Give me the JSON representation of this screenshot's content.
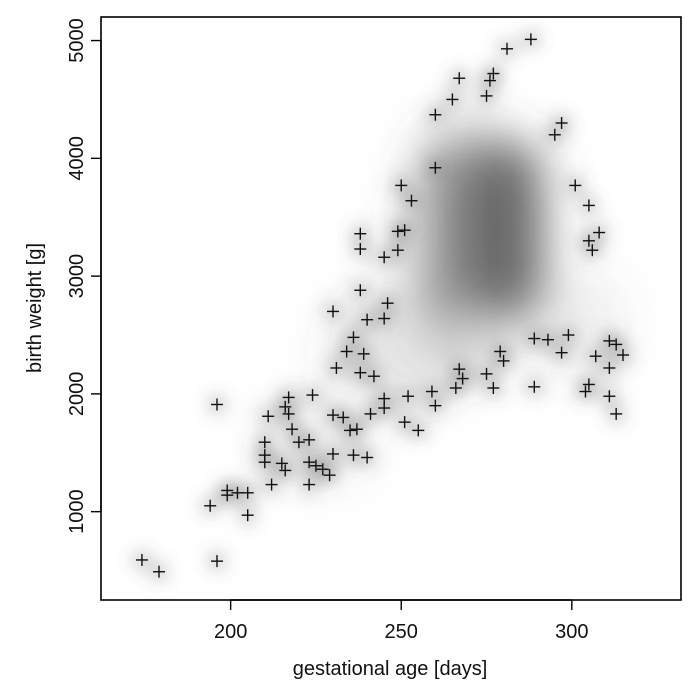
{
  "chart_data": {
    "type": "scatter",
    "xlabel": "gestational age [days]",
    "ylabel": "birth weight [g]",
    "xlim": [
      162,
      332
    ],
    "ylim": [
      250,
      5200
    ],
    "x_ticks": [
      200,
      250,
      300
    ],
    "y_ticks": [
      1000,
      2000,
      3000,
      4000,
      5000
    ],
    "x_tick_labels": [
      "200",
      "250",
      "300"
    ],
    "y_tick_labels": [
      "1000",
      "2000",
      "3000",
      "4000",
      "5000"
    ],
    "grid": false,
    "legend": "none",
    "marker": "plus",
    "density_shading": true,
    "density_region": {
      "x": [
        258,
        292
      ],
      "y": [
        2700,
        4100
      ]
    },
    "colors": {
      "points": "#111111",
      "density": "#555555",
      "axis": "#000000"
    },
    "points": [
      {
        "x": 174,
        "y": 590
      },
      {
        "x": 179,
        "y": 490
      },
      {
        "x": 196,
        "y": 580
      },
      {
        "x": 194,
        "y": 1050
      },
      {
        "x": 199,
        "y": 1180
      },
      {
        "x": 199,
        "y": 1140
      },
      {
        "x": 202,
        "y": 1160
      },
      {
        "x": 205,
        "y": 1160
      },
      {
        "x": 205,
        "y": 970
      },
      {
        "x": 196,
        "y": 1910
      },
      {
        "x": 210,
        "y": 1590
      },
      {
        "x": 210,
        "y": 1480
      },
      {
        "x": 210,
        "y": 1420
      },
      {
        "x": 211,
        "y": 1810
      },
      {
        "x": 212,
        "y": 1230
      },
      {
        "x": 215,
        "y": 1410
      },
      {
        "x": 216,
        "y": 1350
      },
      {
        "x": 216,
        "y": 1890
      },
      {
        "x": 217,
        "y": 1970
      },
      {
        "x": 217,
        "y": 1830
      },
      {
        "x": 218,
        "y": 1700
      },
      {
        "x": 220,
        "y": 1590
      },
      {
        "x": 223,
        "y": 1610
      },
      {
        "x": 223,
        "y": 1230
      },
      {
        "x": 223,
        "y": 1420
      },
      {
        "x": 224,
        "y": 1990
      },
      {
        "x": 225,
        "y": 1390
      },
      {
        "x": 227,
        "y": 1360
      },
      {
        "x": 229,
        "y": 1310
      },
      {
        "x": 230,
        "y": 1490
      },
      {
        "x": 230,
        "y": 1820
      },
      {
        "x": 230,
        "y": 2700
      },
      {
        "x": 231,
        "y": 2220
      },
      {
        "x": 233,
        "y": 1800
      },
      {
        "x": 234,
        "y": 2360
      },
      {
        "x": 235,
        "y": 1690
      },
      {
        "x": 236,
        "y": 2480
      },
      {
        "x": 236,
        "y": 1480
      },
      {
        "x": 237,
        "y": 1700
      },
      {
        "x": 238,
        "y": 3360
      },
      {
        "x": 238,
        "y": 3230
      },
      {
        "x": 238,
        "y": 2880
      },
      {
        "x": 238,
        "y": 2180
      },
      {
        "x": 239,
        "y": 2340
      },
      {
        "x": 240,
        "y": 2630
      },
      {
        "x": 240,
        "y": 1460
      },
      {
        "x": 241,
        "y": 1830
      },
      {
        "x": 242,
        "y": 2150
      },
      {
        "x": 245,
        "y": 3160
      },
      {
        "x": 245,
        "y": 2640
      },
      {
        "x": 245,
        "y": 1960
      },
      {
        "x": 245,
        "y": 1880
      },
      {
        "x": 246,
        "y": 2770
      },
      {
        "x": 249,
        "y": 3380
      },
      {
        "x": 249,
        "y": 3220
      },
      {
        "x": 250,
        "y": 3770
      },
      {
        "x": 251,
        "y": 3390
      },
      {
        "x": 251,
        "y": 1760
      },
      {
        "x": 252,
        "y": 1980
      },
      {
        "x": 253,
        "y": 3640
      },
      {
        "x": 255,
        "y": 1690
      },
      {
        "x": 259,
        "y": 2020
      },
      {
        "x": 260,
        "y": 4370
      },
      {
        "x": 260,
        "y": 3920
      },
      {
        "x": 260,
        "y": 1900
      },
      {
        "x": 265,
        "y": 4500
      },
      {
        "x": 266,
        "y": 2050
      },
      {
        "x": 267,
        "y": 4680
      },
      {
        "x": 267,
        "y": 2210
      },
      {
        "x": 268,
        "y": 2130
      },
      {
        "x": 275,
        "y": 4530
      },
      {
        "x": 275,
        "y": 2170
      },
      {
        "x": 276,
        "y": 4660
      },
      {
        "x": 277,
        "y": 4720
      },
      {
        "x": 277,
        "y": 2050
      },
      {
        "x": 279,
        "y": 2360
      },
      {
        "x": 280,
        "y": 2280
      },
      {
        "x": 281,
        "y": 4930
      },
      {
        "x": 288,
        "y": 5010
      },
      {
        "x": 289,
        "y": 2470
      },
      {
        "x": 289,
        "y": 2060
      },
      {
        "x": 293,
        "y": 2460
      },
      {
        "x": 295,
        "y": 4200
      },
      {
        "x": 297,
        "y": 4300
      },
      {
        "x": 297,
        "y": 2350
      },
      {
        "x": 299,
        "y": 2500
      },
      {
        "x": 301,
        "y": 3770
      },
      {
        "x": 304,
        "y": 2020
      },
      {
        "x": 305,
        "y": 3600
      },
      {
        "x": 305,
        "y": 3300
      },
      {
        "x": 305,
        "y": 2080
      },
      {
        "x": 306,
        "y": 3220
      },
      {
        "x": 307,
        "y": 2320
      },
      {
        "x": 308,
        "y": 3370
      },
      {
        "x": 311,
        "y": 2450
      },
      {
        "x": 311,
        "y": 2220
      },
      {
        "x": 311,
        "y": 1980
      },
      {
        "x": 313,
        "y": 2420
      },
      {
        "x": 313,
        "y": 1830
      },
      {
        "x": 315,
        "y": 2330
      }
    ]
  }
}
